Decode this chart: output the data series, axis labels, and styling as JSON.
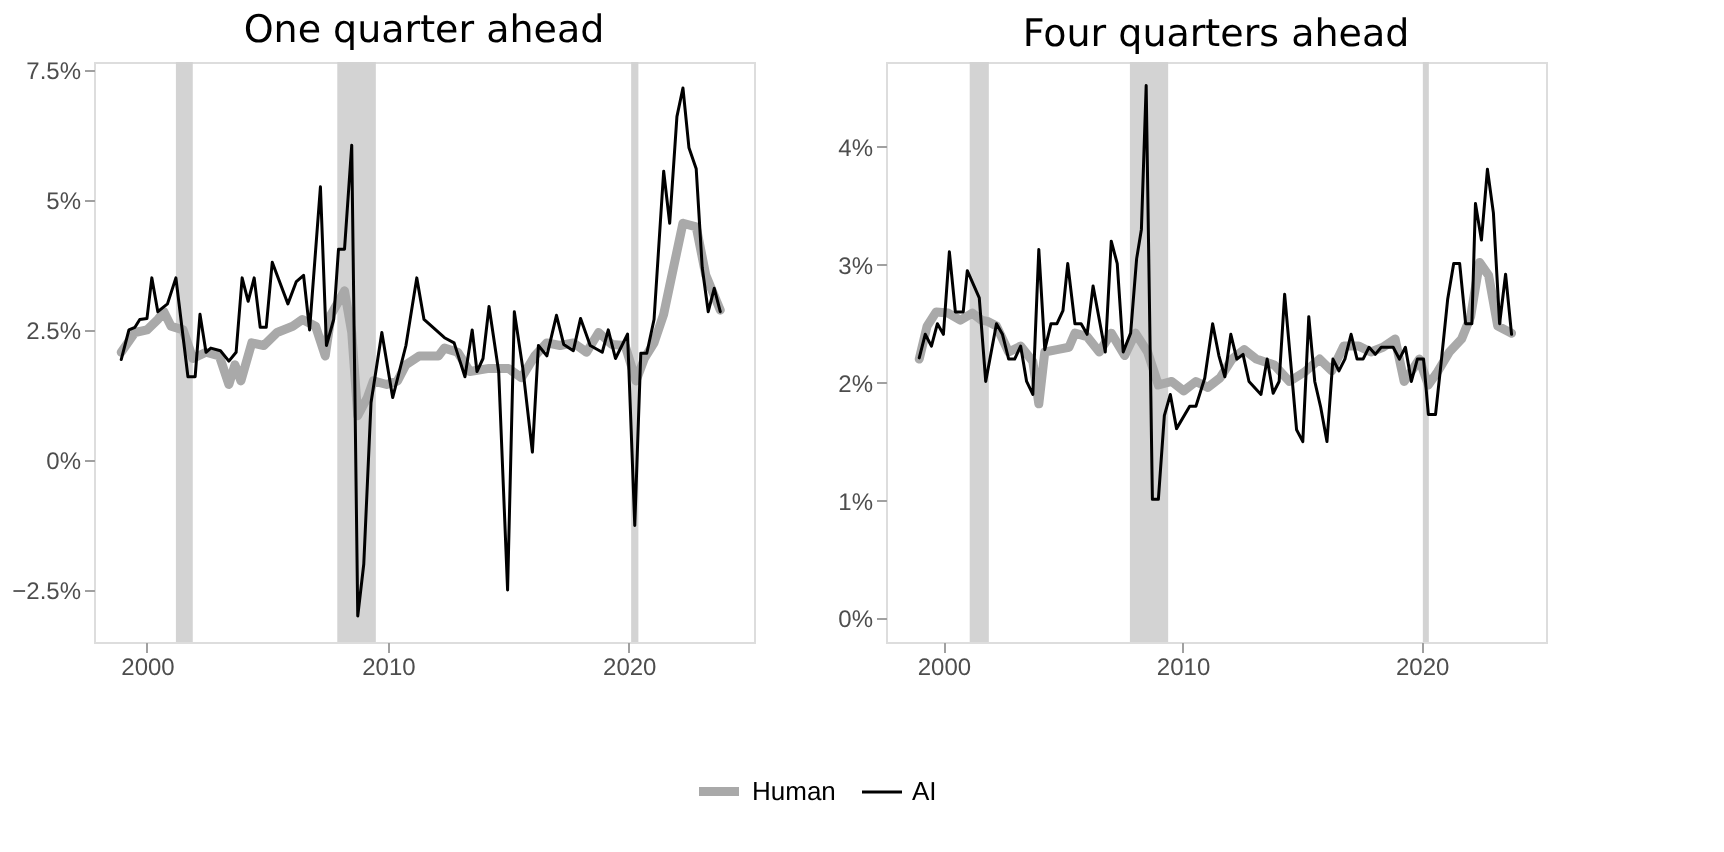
{
  "chart_data": [
    {
      "type": "line",
      "title": "One quarter ahead",
      "xlim": [
        1997.8,
        2025.2
      ],
      "xticks": [
        2000,
        2010,
        2020
      ],
      "ylim": [
        -3.5,
        7.65
      ],
      "yticks": [
        {
          "value": -2.5,
          "label": "−2.5%"
        },
        {
          "value": 0,
          "label": "0%"
        },
        {
          "value": 2.5,
          "label": "2.5%"
        },
        {
          "value": 5,
          "label": "5%"
        },
        {
          "value": 7.5,
          "label": "7.5%"
        }
      ],
      "grid": false,
      "legend": "bottom",
      "marker": "none",
      "line_style": "solid",
      "bands": [
        {
          "axis": "x",
          "from": 2001.2,
          "to": 2001.9,
          "color": "#d3d3d3"
        },
        {
          "axis": "x",
          "from": 2007.9,
          "to": 2009.5,
          "color": "#d3d3d3"
        },
        {
          "axis": "x",
          "from": 2020.1,
          "to": 2020.4,
          "color": "#d3d3d3"
        }
      ],
      "series": [
        {
          "name": "Human",
          "color": "#a9a9a9",
          "x": [
            1998.93,
            1999.5,
            2000,
            2000.45,
            2000.7,
            2001.0,
            2001.5,
            2001.9,
            2002.45,
            2003.0,
            2003.4,
            2003.65,
            2003.9,
            2004.35,
            2004.85,
            2005.4,
            2006.05,
            2006.45,
            2007.0,
            2007.4,
            2007.65,
            2008.2,
            2008.5,
            2008.75,
            2009.15,
            2009.4,
            2009.95,
            2010.4,
            2010.75,
            2011.3,
            2012.1,
            2012.35,
            2012.9,
            2013.4,
            2014.2,
            2015.0,
            2015.55,
            2016.1,
            2016.6,
            2017.15,
            2017.7,
            2018.25,
            2018.75,
            2019.3,
            2019.85,
            2020.3,
            2020.65,
            2021.05,
            2021.45,
            2021.85,
            2022.25,
            2022.8,
            2023.2,
            2023.8
          ],
          "values": [
            2.07,
            2.45,
            2.5,
            2.7,
            2.85,
            2.57,
            2.5,
            1.95,
            2.07,
            2.0,
            1.45,
            1.83,
            1.52,
            2.25,
            2.2,
            2.45,
            2.57,
            2.7,
            2.57,
            2.0,
            2.8,
            3.25,
            2.45,
            0.85,
            1.2,
            1.52,
            1.45,
            1.52,
            1.83,
            2.0,
            2.0,
            2.15,
            2.07,
            1.7,
            1.76,
            1.76,
            1.58,
            2.0,
            2.25,
            2.2,
            2.25,
            2.07,
            2.45,
            2.22,
            2.2,
            1.52,
            1.95,
            2.25,
            2.8,
            3.68,
            4.55,
            4.48,
            3.55,
            2.88
          ]
        },
        {
          "name": "AI",
          "color": "#000000",
          "x": [
            1998.93,
            1999.25,
            1999.5,
            1999.7,
            2000,
            2000.2,
            2000.45,
            2000.85,
            2001.2,
            2001.7,
            2002.0,
            2002.2,
            2002.45,
            2002.65,
            2003.05,
            2003.4,
            2003.7,
            2003.95,
            2004.2,
            2004.45,
            2004.7,
            2004.95,
            2005.2,
            2005.85,
            2006.2,
            2006.5,
            2006.75,
            2007.2,
            2007.45,
            2007.75,
            2007.95,
            2008.2,
            2008.5,
            2008.75,
            2009.0,
            2009.3,
            2009.75,
            2010.2,
            2010.75,
            2011.2,
            2011.5,
            2012.35,
            2012.75,
            2013.2,
            2013.5,
            2013.7,
            2013.95,
            2014.2,
            2014.6,
            2014.97,
            2015.25,
            2015.6,
            2016.0,
            2016.25,
            2016.6,
            2017.0,
            2017.3,
            2017.7,
            2018.0,
            2018.4,
            2018.9,
            2019.15,
            2019.45,
            2019.95,
            2020.25,
            2020.5,
            2020.75,
            2021.05,
            2021.45,
            2021.7,
            2022.0,
            2022.25,
            2022.5,
            2022.8,
            2023.05,
            2023.3,
            2023.55,
            2023.8
          ],
          "values": [
            1.93,
            2.5,
            2.55,
            2.7,
            2.72,
            3.5,
            2.85,
            3.0,
            3.5,
            1.6,
            1.6,
            2.8,
            2.07,
            2.15,
            2.1,
            1.9,
            2.07,
            3.5,
            3.05,
            3.5,
            2.55,
            2.55,
            3.8,
            3.0,
            3.43,
            3.55,
            2.5,
            5.25,
            2.2,
            2.7,
            4.05,
            4.05,
            6.05,
            -3.0,
            -2.0,
            1.1,
            2.45,
            1.2,
            2.2,
            3.5,
            2.7,
            2.35,
            2.25,
            1.6,
            2.5,
            1.7,
            1.95,
            2.95,
            1.7,
            -2.5,
            2.85,
            1.77,
            0.15,
            2.2,
            2.0,
            2.78,
            2.22,
            2.1,
            2.72,
            2.2,
            2.07,
            2.5,
            1.95,
            2.42,
            -1.26,
            2.05,
            2.05,
            2.7,
            5.55,
            4.55,
            6.6,
            7.15,
            6.0,
            5.6,
            3.7,
            2.85,
            3.3,
            2.85
          ]
        }
      ]
    },
    {
      "type": "line",
      "title": "Four quarters ahead",
      "xlim": [
        1997.6,
        2025.2
      ],
      "xticks": [
        2000,
        2010,
        2020
      ],
      "ylim": [
        -0.2,
        4.72
      ],
      "yticks": [
        {
          "value": 0,
          "label": "0%"
        },
        {
          "value": 1,
          "label": "1%"
        },
        {
          "value": 2,
          "label": "2%"
        },
        {
          "value": 3,
          "label": "3%"
        },
        {
          "value": 4,
          "label": "4%"
        }
      ],
      "grid": false,
      "legend": "bottom",
      "marker": "none",
      "line_style": "solid",
      "bands": [
        {
          "axis": "x",
          "from": 2001.1,
          "to": 2001.9,
          "color": "#d3d3d3"
        },
        {
          "axis": "x",
          "from": 2007.8,
          "to": 2009.4,
          "color": "#d3d3d3"
        },
        {
          "axis": "x",
          "from": 2020.05,
          "to": 2020.3,
          "color": "#d3d3d3"
        }
      ],
      "series": [
        {
          "name": "Human",
          "color": "#a9a9a9",
          "x": [
            1998.99,
            1999.32,
            1999.7,
            2000.2,
            2000.71,
            2001.21,
            2001.59,
            2001.84,
            2002.22,
            2002.73,
            2003.23,
            2003.74,
            2003.99,
            2004.24,
            2004.75,
            2005.25,
            2005.5,
            2006.01,
            2006.52,
            2007.02,
            2007.58,
            2008.03,
            2008.54,
            2008.99,
            2009.55,
            2010.05,
            2010.56,
            2011.06,
            2011.57,
            2012.07,
            2012.58,
            2013.08,
            2013.84,
            2014.47,
            2015.1,
            2015.73,
            2016.24,
            2016.74,
            2017.37,
            2017.88,
            2018.38,
            2018.89,
            2019.27,
            2019.65,
            2019.9,
            2020.28,
            2020.66,
            2021.16,
            2021.67,
            2022.05,
            2022.42,
            2022.8,
            2023.18,
            2023.76
          ],
          "values": [
            2.2,
            2.48,
            2.6,
            2.59,
            2.53,
            2.59,
            2.53,
            2.52,
            2.48,
            2.26,
            2.31,
            2.18,
            1.82,
            2.26,
            2.28,
            2.3,
            2.42,
            2.39,
            2.26,
            2.42,
            2.23,
            2.42,
            2.26,
            1.98,
            2.01,
            1.93,
            2.01,
            1.96,
            2.04,
            2.2,
            2.28,
            2.2,
            2.15,
            2.01,
            2.09,
            2.2,
            2.1,
            2.31,
            2.31,
            2.26,
            2.3,
            2.37,
            2.01,
            2.12,
            2.2,
            1.98,
            2.09,
            2.26,
            2.37,
            2.56,
            3.02,
            2.91,
            2.48,
            2.42
          ]
        },
        {
          "name": "AI",
          "color": "#000000",
          "x": [
            1998.99,
            1999.24,
            1999.5,
            1999.75,
            2000,
            2000.25,
            2000.5,
            2000.83,
            2001.0,
            2001.5,
            2001.77,
            2002.22,
            2002.47,
            2002.73,
            2002.98,
            2003.23,
            2003.48,
            2003.74,
            2003.99,
            2004.24,
            2004.5,
            2004.75,
            2005.0,
            2005.2,
            2005.5,
            2005.76,
            2006.01,
            2006.26,
            2006.77,
            2007.02,
            2007.27,
            2007.52,
            2007.83,
            2008.08,
            2008.28,
            2008.48,
            2008.74,
            2008.99,
            2009.24,
            2009.49,
            2009.75,
            2010.3,
            2010.56,
            2010.93,
            2011.26,
            2011.52,
            2011.77,
            2012.02,
            2012.27,
            2012.53,
            2012.78,
            2013.28,
            2013.54,
            2013.79,
            2014.04,
            2014.27,
            2014.52,
            2014.77,
            2015.03,
            2015.28,
            2015.53,
            2015.78,
            2016.04,
            2016.29,
            2016.54,
            2016.79,
            2017.05,
            2017.3,
            2017.55,
            2017.8,
            2018.06,
            2018.31,
            2018.81,
            2019.07,
            2019.32,
            2019.57,
            2019.82,
            2020.08,
            2020.28,
            2020.58,
            2020.83,
            2021.09,
            2021.34,
            2021.59,
            2021.84,
            2022.1,
            2022.25,
            2022.5,
            2022.75,
            2023.0,
            2023.26,
            2023.51,
            2023.76
          ],
          "values": [
            2.21,
            2.41,
            2.31,
            2.5,
            2.41,
            3.11,
            2.6,
            2.6,
            2.95,
            2.72,
            2.01,
            2.5,
            2.41,
            2.2,
            2.2,
            2.31,
            2.01,
            1.9,
            3.13,
            2.28,
            2.5,
            2.5,
            2.61,
            3.01,
            2.5,
            2.5,
            2.41,
            2.82,
            2.26,
            3.2,
            3.01,
            2.26,
            2.42,
            3.05,
            3.3,
            4.52,
            1.01,
            1.01,
            1.72,
            1.9,
            1.61,
            1.8,
            1.8,
            2.04,
            2.5,
            2.23,
            2.05,
            2.41,
            2.2,
            2.24,
            2.01,
            1.9,
            2.2,
            1.91,
            2.01,
            2.75,
            2.18,
            1.6,
            1.5,
            2.56,
            2.01,
            1.79,
            1.5,
            2.2,
            2.1,
            2.2,
            2.41,
            2.2,
            2.2,
            2.3,
            2.24,
            2.3,
            2.3,
            2.2,
            2.3,
            2.01,
            2.2,
            2.2,
            1.73,
            1.73,
            2.2,
            2.71,
            3.01,
            3.01,
            2.5,
            2.5,
            3.52,
            3.21,
            3.81,
            3.44,
            2.5,
            2.92,
            2.41
          ]
        }
      ]
    }
  ]
}
